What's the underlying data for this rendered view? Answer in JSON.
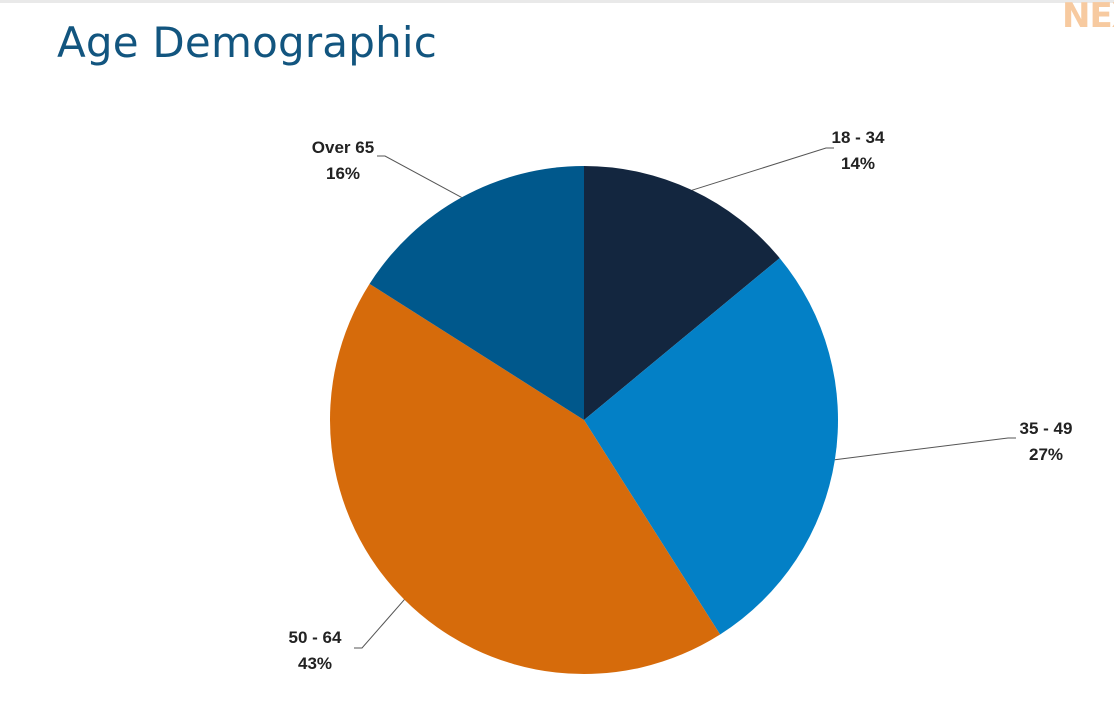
{
  "slide": {
    "title": "Age Demographic",
    "logo_text": "NEX"
  },
  "colors": {
    "title": "#12557f",
    "logo": "#f7caa0",
    "slices": [
      "#13263f",
      "#0380c6",
      "#d66b0b",
      "#00588c"
    ]
  },
  "chart_data": {
    "type": "pie",
    "start_angle_deg": 0,
    "direction": "clockwise",
    "slices": [
      {
        "label": "18 - 34",
        "value": 14,
        "value_label": "14%"
      },
      {
        "label": "35 - 49",
        "value": 27,
        "value_label": "27%"
      },
      {
        "label": "50 - 64",
        "value": 43,
        "value_label": "43%"
      },
      {
        "label": "Over 65",
        "value": 16,
        "value_label": "16%"
      }
    ],
    "legend": "none",
    "data_labels": "outside-with-leader-lines"
  }
}
